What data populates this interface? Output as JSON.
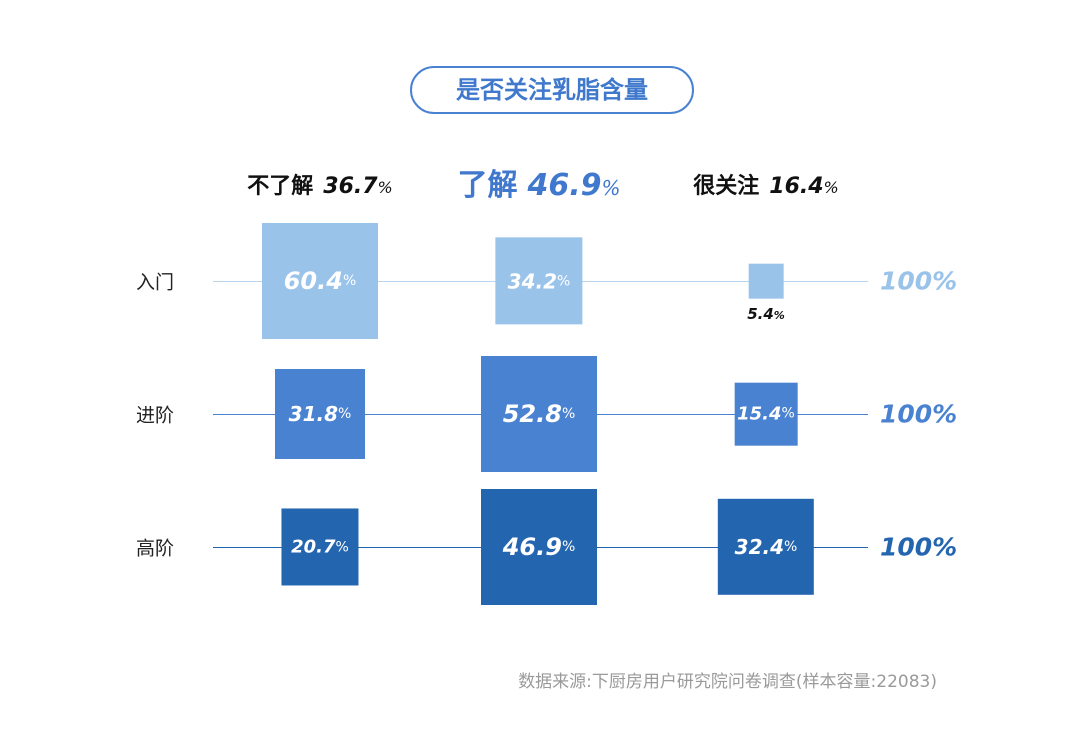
{
  "chart_data": {
    "type": "square-matrix",
    "title": "是否关注乳脂含量",
    "columns": [
      {
        "label": "不了解",
        "value": "36.7",
        "unit": "%"
      },
      {
        "label": "了解",
        "value": "46.9",
        "unit": "%"
      },
      {
        "label": "很关注",
        "value": "16.4",
        "unit": "%"
      }
    ],
    "rows": [
      {
        "label": "入门",
        "values": [
          60.4,
          34.2,
          5.4
        ],
        "total": "100%",
        "color": "#9ac3ea"
      },
      {
        "label": "进阶",
        "values": [
          31.8,
          52.8,
          15.4
        ],
        "total": "100%",
        "color": "#4a82d2"
      },
      {
        "label": "高阶",
        "values": [
          20.7,
          46.9,
          32.4
        ],
        "total": "100%",
        "color": "#2465b0"
      }
    ],
    "source": "数据来源:下厨房用户研究院问卷调查(样本容量:22083)"
  }
}
